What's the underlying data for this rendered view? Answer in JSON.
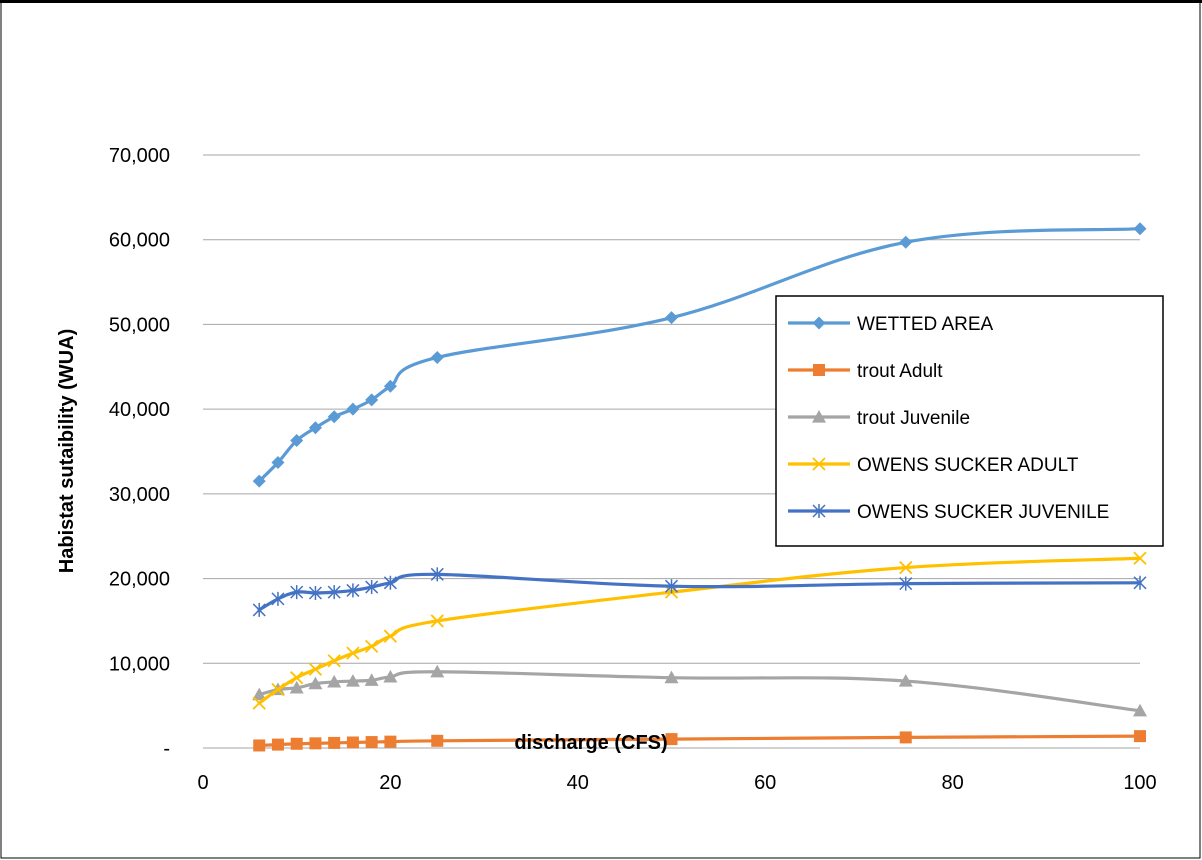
{
  "chart_data": {
    "type": "line",
    "title": "",
    "xlabel": "discharge (CFS)",
    "ylabel": "Habistat sutaibility (WUA)",
    "xlim": [
      0,
      100
    ],
    "ylim": [
      0,
      70000
    ],
    "x_ticks": [
      0,
      20,
      40,
      60,
      80,
      100
    ],
    "x_tick_labels": [
      "0",
      "20",
      "40",
      "60",
      "80",
      "100"
    ],
    "y_ticks": [
      0,
      10000,
      20000,
      30000,
      40000,
      50000,
      60000,
      70000
    ],
    "y_tick_labels": [
      "-",
      "10,000",
      "20,000",
      "30,000",
      "40,000",
      "50,000",
      "60,000",
      "70,000"
    ],
    "grid": "horizontal",
    "legend_position": "right",
    "x": [
      6,
      8,
      10,
      12,
      14,
      16,
      18,
      20,
      25,
      50,
      75,
      100
    ],
    "series": [
      {
        "name": "WETTED AREA",
        "color": "#5B9BD5",
        "marker": "diamond",
        "values": [
          31500,
          33700,
          36300,
          37800,
          39100,
          40000,
          41100,
          42700,
          46100,
          50800,
          59700,
          61300
        ]
      },
      {
        "name": "trout Adult",
        "color": "#ED7D31",
        "marker": "square",
        "values": [
          300,
          400,
          500,
          550,
          600,
          650,
          700,
          750,
          850,
          1050,
          1250,
          1400
        ]
      },
      {
        "name": "trout Juvenile",
        "color": "#A5A5A5",
        "marker": "triangle",
        "values": [
          6300,
          6900,
          7100,
          7600,
          7800,
          7900,
          8000,
          8400,
          9000,
          8300,
          7900,
          4400
        ]
      },
      {
        "name": "OWENS SUCKER ADULT",
        "color": "#FFC000",
        "marker": "x",
        "values": [
          5300,
          6900,
          8300,
          9300,
          10300,
          11200,
          12000,
          13200,
          15000,
          18400,
          21300,
          22400
        ]
      },
      {
        "name": "OWENS SUCKER JUVENILE",
        "color": "#4472C4",
        "marker": "asterisk",
        "values": [
          16300,
          17600,
          18400,
          18300,
          18400,
          18600,
          19000,
          19500,
          20500,
          19100,
          19400,
          19500
        ]
      }
    ]
  }
}
